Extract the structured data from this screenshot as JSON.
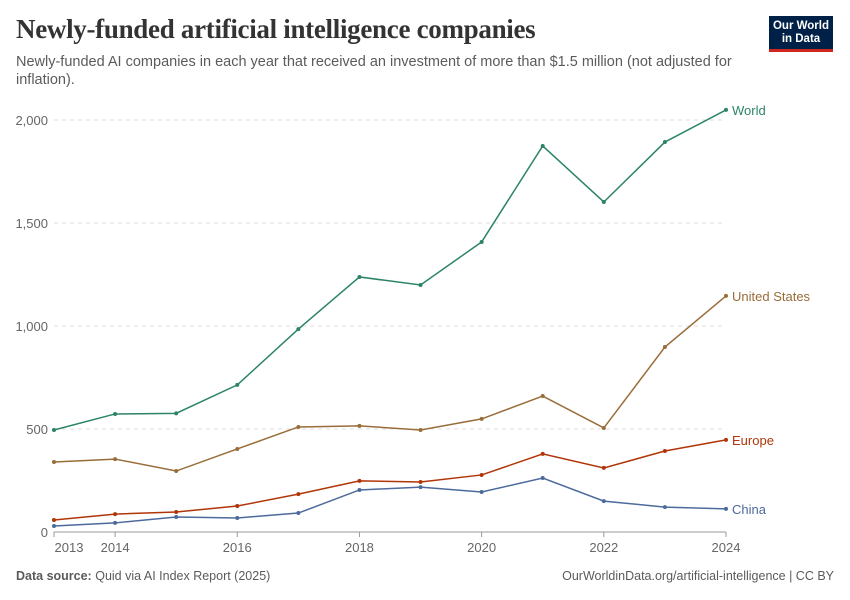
{
  "header": {
    "title": "Newly-funded artificial intelligence companies",
    "subtitle": "Newly-funded AI companies in each year that received an investment of more than $1.5 million (not adjusted for inflation).",
    "logo_text": "Our World in Data"
  },
  "footer": {
    "source_label": "Data source:",
    "source": "Quid via AI Index Report (2025)",
    "credit": "OurWorldinData.org/artificial-intelligence | CC BY"
  },
  "chart_data": {
    "type": "line",
    "x": [
      2013,
      2014,
      2015,
      2016,
      2017,
      2018,
      2019,
      2020,
      2021,
      2022,
      2023,
      2024
    ],
    "x_ticks": [
      2013,
      2014,
      2016,
      2018,
      2020,
      2022,
      2024
    ],
    "x_tick_labels": [
      "2013",
      "2014",
      "2016",
      "2018",
      "2020",
      "2022",
      "2024"
    ],
    "y_ticks": [
      0,
      500,
      1000,
      1500,
      2000
    ],
    "y_tick_labels": [
      "0",
      "500",
      "1,000",
      "1,500",
      "2,000"
    ],
    "ylim": [
      0,
      2050
    ],
    "xlim": [
      2013,
      2024
    ],
    "grid": "horizontal dashed",
    "legend": "inline labels at line ends",
    "series": [
      {
        "name": "World",
        "color": "#2c8465",
        "values": [
          495,
          573,
          576,
          714,
          985,
          1238,
          1199,
          1408,
          1874,
          1602,
          1893,
          2049
        ]
      },
      {
        "name": "United States",
        "color": "#996d39",
        "values": [
          340,
          354,
          296,
          403,
          510,
          515,
          495,
          549,
          660,
          505,
          898,
          1146
        ]
      },
      {
        "name": "Europe",
        "color": "#b13507",
        "values": [
          58,
          87,
          97,
          126,
          184,
          248,
          243,
          277,
          379,
          311,
          393,
          447
        ]
      },
      {
        "name": "China",
        "color": "#4c6a9c",
        "values": [
          29,
          44,
          73,
          68,
          92,
          204,
          218,
          194,
          262,
          150,
          121,
          112
        ]
      }
    ]
  }
}
